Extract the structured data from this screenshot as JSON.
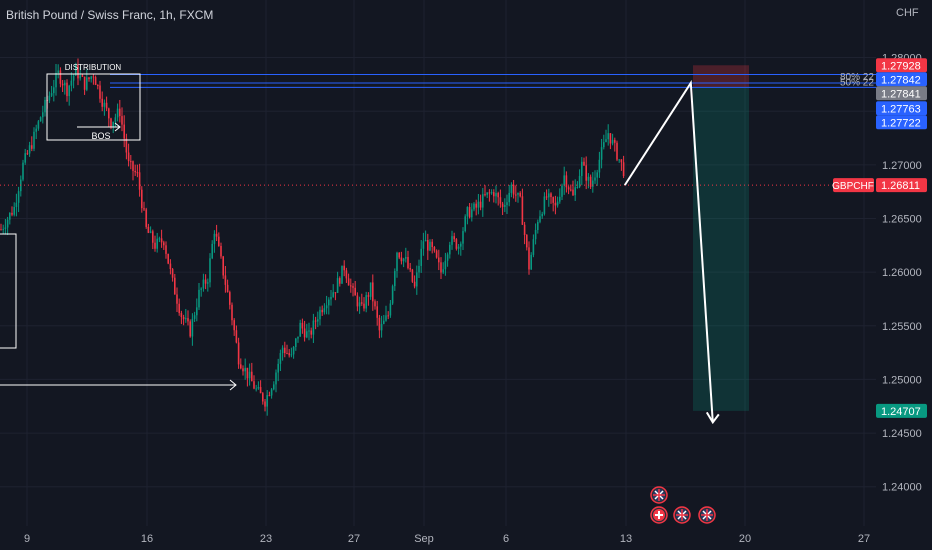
{
  "header": {
    "title": "British Pound / Swiss Franc, 1h, FXCM",
    "currency_label": "CHF"
  },
  "chart_data": {
    "type": "candlestick",
    "title": "British Pound / Swiss Franc, 1h, FXCM",
    "y_range": [
      1.2355,
      1.2835
    ],
    "y_ticks": [
      "1.28000",
      "1.27500",
      "1.27000",
      "1.26500",
      "1.26000",
      "1.25500",
      "1.25000",
      "1.24500",
      "1.24000"
    ],
    "x_ticks": [
      "9",
      "16",
      "23",
      "27",
      "Sep",
      "6",
      "13",
      "20",
      "27"
    ],
    "current_price": {
      "symbol": "GBPCHF",
      "value": "1.26811"
    },
    "price_tags": [
      {
        "value": "1.27928",
        "color": "#f23645"
      },
      {
        "value": "1.27842",
        "color": "#2962ff"
      },
      {
        "value": "1.27841",
        "color": "#787b86"
      },
      {
        "value": "1.27763",
        "color": "#2962ff"
      },
      {
        "value": "1.27722",
        "color": "#2962ff"
      },
      {
        "value": "1.24707",
        "color": "#089981"
      }
    ],
    "fib_labels": [
      "80% 22",
      "50% 22"
    ],
    "annotations": {
      "distribution_label": "DISTRIBUTION",
      "bos_label": "BOS"
    },
    "price_path": [
      [
        0,
        1.264
      ],
      [
        3,
        1.265
      ],
      [
        6,
        1.266
      ],
      [
        10,
        1.27
      ],
      [
        14,
        1.272
      ],
      [
        18,
        1.2745
      ],
      [
        22,
        1.2765
      ],
      [
        26,
        1.2785
      ],
      [
        30,
        1.277
      ],
      [
        34,
        1.2788
      ],
      [
        38,
        1.2775
      ],
      [
        42,
        1.2785
      ],
      [
        46,
        1.276
      ],
      [
        50,
        1.274
      ],
      [
        54,
        1.275
      ],
      [
        58,
        1.27
      ],
      [
        62,
        1.269
      ],
      [
        66,
        1.264
      ],
      [
        70,
        1.2625
      ],
      [
        74,
        1.263
      ],
      [
        78,
        1.259
      ],
      [
        82,
        1.256
      ],
      [
        86,
        1.2545
      ],
      [
        90,
        1.258
      ],
      [
        94,
        1.2595
      ],
      [
        97,
        1.264
      ],
      [
        100,
        1.261
      ],
      [
        104,
        1.257
      ],
      [
        108,
        1.252
      ],
      [
        112,
        1.2505
      ],
      [
        116,
        1.249
      ],
      [
        120,
        1.248
      ],
      [
        124,
        1.25
      ],
      [
        128,
        1.253
      ],
      [
        132,
        1.252
      ],
      [
        136,
        1.255
      ],
      [
        140,
        1.254
      ],
      [
        144,
        1.256
      ],
      [
        148,
        1.2575
      ],
      [
        152,
        1.2585
      ],
      [
        156,
        1.2605
      ],
      [
        160,
        1.258
      ],
      [
        164,
        1.2565
      ],
      [
        168,
        1.2585
      ],
      [
        172,
        1.2545
      ],
      [
        176,
        1.256
      ],
      [
        180,
        1.262
      ],
      [
        184,
        1.261
      ],
      [
        188,
        1.2585
      ],
      [
        192,
        1.263
      ],
      [
        196,
        1.262
      ],
      [
        200,
        1.26
      ],
      [
        204,
        1.263
      ],
      [
        208,
        1.2625
      ],
      [
        212,
        1.2655
      ],
      [
        216,
        1.266
      ],
      [
        220,
        1.267
      ],
      [
        224,
        1.2675
      ],
      [
        228,
        1.266
      ],
      [
        232,
        1.268
      ],
      [
        236,
        1.2665
      ],
      [
        240,
        1.2605
      ],
      [
        244,
        1.265
      ],
      [
        248,
        1.267
      ],
      [
        252,
        1.266
      ],
      [
        256,
        1.269
      ],
      [
        260,
        1.267
      ],
      [
        264,
        1.27
      ],
      [
        268,
        1.268
      ],
      [
        272,
        1.2705
      ],
      [
        276,
        1.273
      ],
      [
        280,
        1.271
      ],
      [
        284,
        1.269
      ]
    ],
    "projection": [
      [
        284,
        1.26811
      ],
      [
        314,
        1.27763
      ],
      [
        324,
        1.246
      ]
    ],
    "position": {
      "entry": 1.27722,
      "stop": 1.27928,
      "target": 1.24707
    },
    "event_icons": [
      "uk-flag",
      "swiss-flag",
      "uk-flag",
      "uk-flag"
    ]
  }
}
